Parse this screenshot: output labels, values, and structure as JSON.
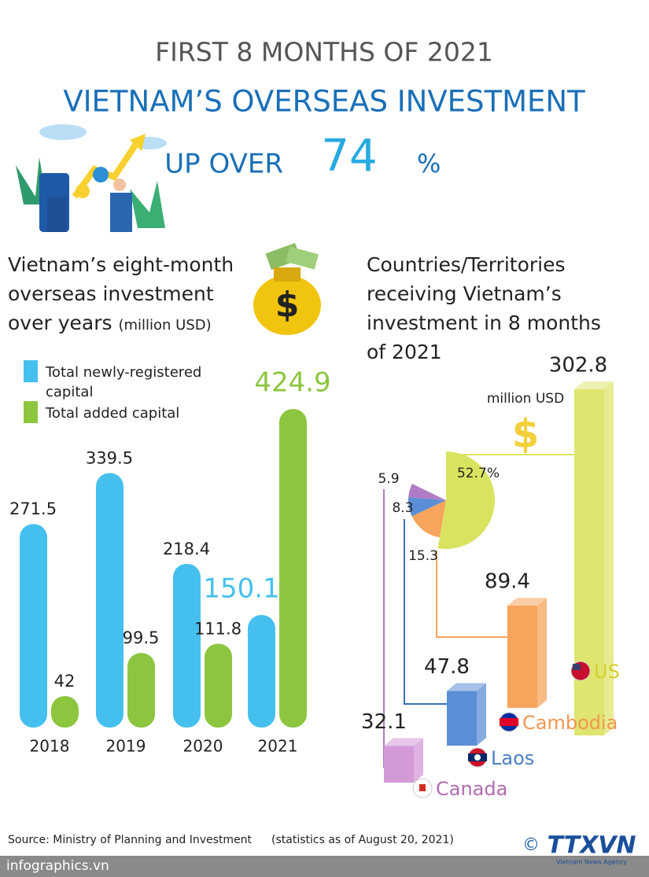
{
  "header": {
    "kicker": "FIRST 8 MONTHS OF 2021",
    "title": "VIETNAM’S OVERSEAS INVESTMENT",
    "headline_prefix": "UP OVER",
    "headline_value": 74,
    "headline_unit": "%"
  },
  "chart_data": [
    {
      "type": "bar",
      "title": "Vietnam’s eight-month overseas investment over years",
      "unit": "(million USD)",
      "categories": [
        "2018",
        "2019",
        "2020",
        "2021"
      ],
      "series": [
        {
          "name": "Total newly-registered capital",
          "color": "#45c0ee",
          "values": [
            271.5,
            339.5,
            218.4,
            150.1
          ]
        },
        {
          "name": "Total added capital",
          "color": "#8cc63f",
          "values": [
            42,
            99.5,
            111.8,
            424.9
          ]
        }
      ]
    },
    {
      "type": "bar3d",
      "title": "Countries/Territories receiving Vietnam’s investment in 8 months of 2021",
      "unit": "million USD",
      "categories": [
        "US",
        "Cambodia",
        "Laos",
        "Canada"
      ],
      "values": [
        302.8,
        89.4,
        47.8,
        32.1
      ],
      "colors": [
        "#dfe56f",
        "#f7a45c",
        "#5b8ed6",
        "#d49ad8"
      ],
      "label_colors": [
        "#d2cf2a",
        "#f29652",
        "#4a7fc1",
        "#b36bb0"
      ]
    },
    {
      "type": "pie",
      "values": [
        52.7,
        15.3,
        8.3,
        5.9
      ],
      "value_labels": [
        "52.7%",
        "15.3",
        "8.3",
        "5.9"
      ],
      "colors": [
        "#d9e35f",
        "#f7a45c",
        "#5b8ed6",
        "#b07cc6"
      ]
    }
  ],
  "source": "Source: Ministry of Planning and Investment",
  "source_note": "(statistics as of August 20, 2021)",
  "footer": "infographics.vn",
  "logo": "TTXVN",
  "logo_sub": "Vietnam News Agency"
}
